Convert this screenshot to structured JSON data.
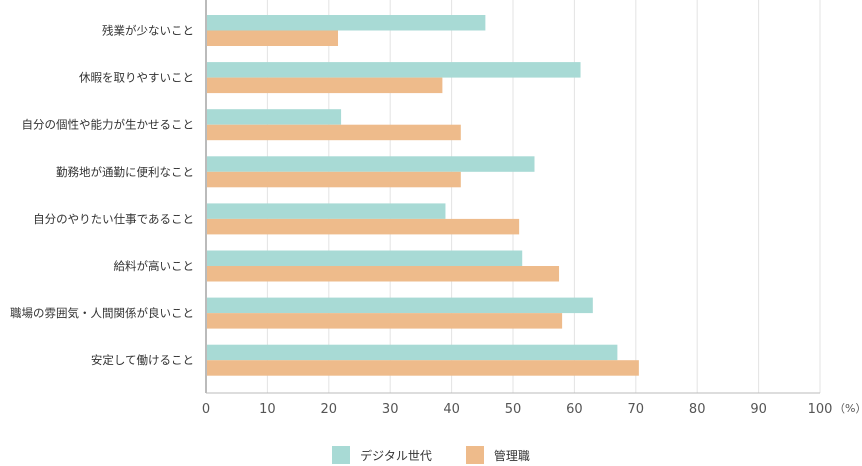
{
  "chart_data": {
    "type": "bar",
    "orientation": "horizontal",
    "categories": [
      "残業が少ないこと",
      "休暇を取りやすいこと",
      "自分の個性や能力が生かせること",
      "勤務地が通勤に便利なこと",
      "自分のやりたい仕事であること",
      "給料が高いこと",
      "職場の雰囲気・人間関係が良いこと",
      "安定して働けること"
    ],
    "series": [
      {
        "name": "デジタル世代",
        "color": "#a8dad5",
        "values": [
          45.5,
          61,
          22,
          53.5,
          39,
          51.5,
          63,
          67
        ]
      },
      {
        "name": "管理職",
        "color": "#eebb8b",
        "values": [
          21.5,
          38.5,
          41.5,
          41.5,
          51,
          57.5,
          58,
          70.5
        ]
      }
    ],
    "xlim": [
      0,
      100
    ],
    "xticks": [
      0,
      10,
      20,
      30,
      40,
      50,
      60,
      70,
      80,
      90,
      100
    ],
    "unit_label": "（%）",
    "grid": true,
    "legend_position": "bottom-center"
  }
}
